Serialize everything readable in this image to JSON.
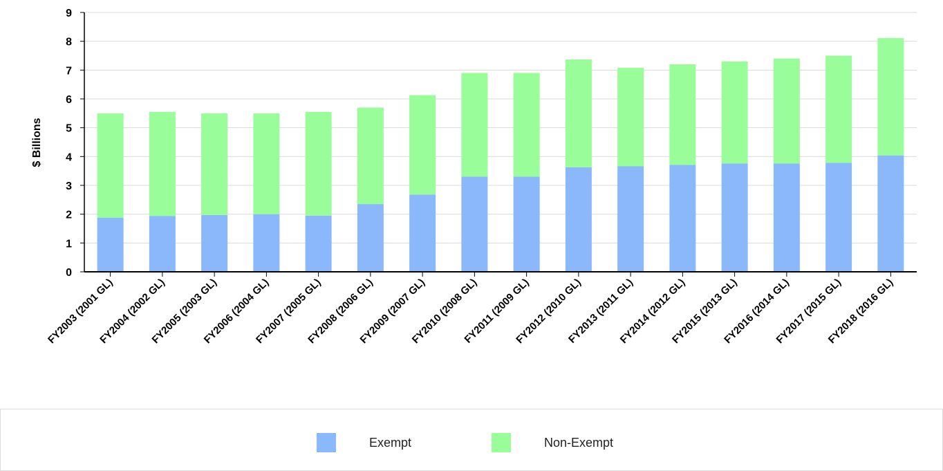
{
  "chart_data": {
    "type": "bar",
    "stacked": true,
    "ylabel": "$ Billions",
    "ylim": [
      0,
      9
    ],
    "yticks": [
      "0",
      "1",
      "2",
      "3",
      "4",
      "5",
      "6",
      "7",
      "8",
      "9"
    ],
    "grid": true,
    "legend_position": "bottom",
    "categories": [
      "FY2003 (2001 GL)",
      "FY2004 (2002 GL)",
      "FY2005 (2003 GL)",
      "FY2006 (2004 GL)",
      "FY2007 (2005 GL)",
      "FY2008 (2006 GL)",
      "FY2009 (2007 GL)",
      "FY2010 (2008 GL)",
      "FY2011 (2009 GL)",
      "FY2012 (2010 GL)",
      "FY2013 (2011 GL)",
      "FY2014 (2012 GL)",
      "FY2015 (2013 GL)",
      "FY2016 (2014 GL)",
      "FY2017 (2015 GL)",
      "FY2018 (2016 GL)"
    ],
    "series": [
      {
        "name": "Exempt",
        "color": "#8ab8fb",
        "values": [
          1.88,
          1.94,
          1.97,
          2.0,
          1.95,
          2.35,
          2.68,
          3.3,
          3.3,
          3.63,
          3.66,
          3.71,
          3.76,
          3.76,
          3.78,
          4.04
        ]
      },
      {
        "name": "Non-Exempt",
        "color": "#99fd99",
        "values": [
          3.62,
          3.61,
          3.53,
          3.5,
          3.6,
          3.35,
          3.45,
          3.6,
          3.6,
          3.74,
          3.42,
          3.49,
          3.54,
          3.64,
          3.72,
          4.07
        ]
      }
    ]
  },
  "legend": {
    "items": [
      {
        "label": "Exempt",
        "color": "#8ab8fb"
      },
      {
        "label": "Non-Exempt",
        "color": "#99fd99"
      }
    ]
  }
}
